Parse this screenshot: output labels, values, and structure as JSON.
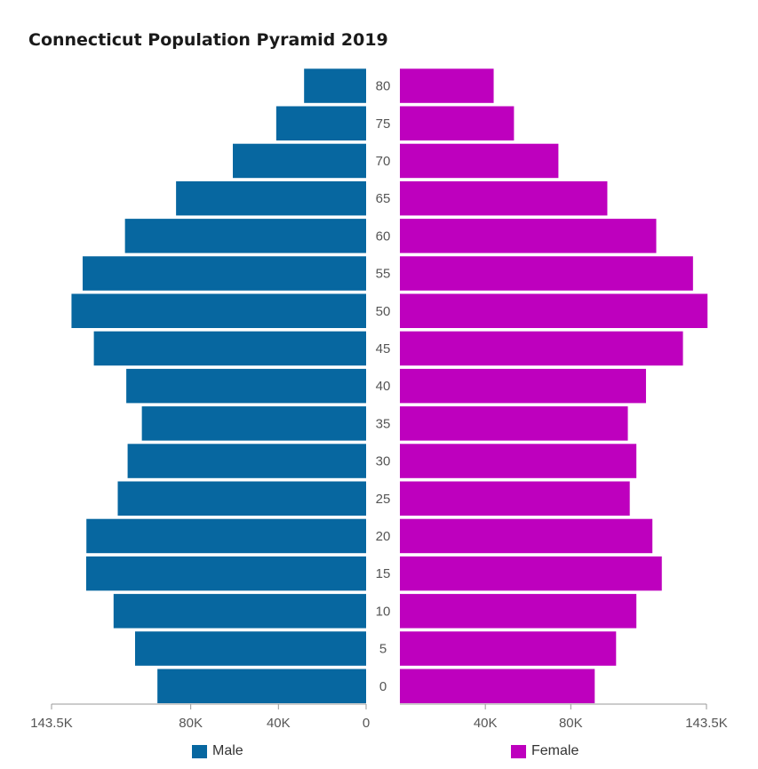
{
  "chart_data": {
    "type": "bar",
    "title": "Connecticut Population Pyramid 2019",
    "categories": [
      "0",
      "5",
      "10",
      "15",
      "20",
      "25",
      "30",
      "35",
      "40",
      "45",
      "50",
      "55",
      "60",
      "65",
      "70",
      "75",
      "80"
    ],
    "series": [
      {
        "name": "Male",
        "color": "#0767a0",
        "values": [
          95200,
          105400,
          115200,
          127700,
          127600,
          113300,
          108800,
          102300,
          109400,
          124200,
          134400,
          129300,
          110000,
          86700,
          60800,
          41000,
          28300
        ]
      },
      {
        "name": "Female",
        "color": "#be00be",
        "values": [
          91200,
          101200,
          110700,
          122600,
          118200,
          107600,
          110700,
          106700,
          115200,
          132500,
          144000,
          137200,
          120000,
          97100,
          74200,
          53400,
          43900
        ]
      }
    ],
    "x_ticks_left": [
      "143.5K",
      "80K",
      "40K",
      "0"
    ],
    "x_ticks_right": [
      "40K",
      "80K",
      "143.5K"
    ],
    "xlim": [
      0,
      143500
    ],
    "legend": "bottom"
  }
}
